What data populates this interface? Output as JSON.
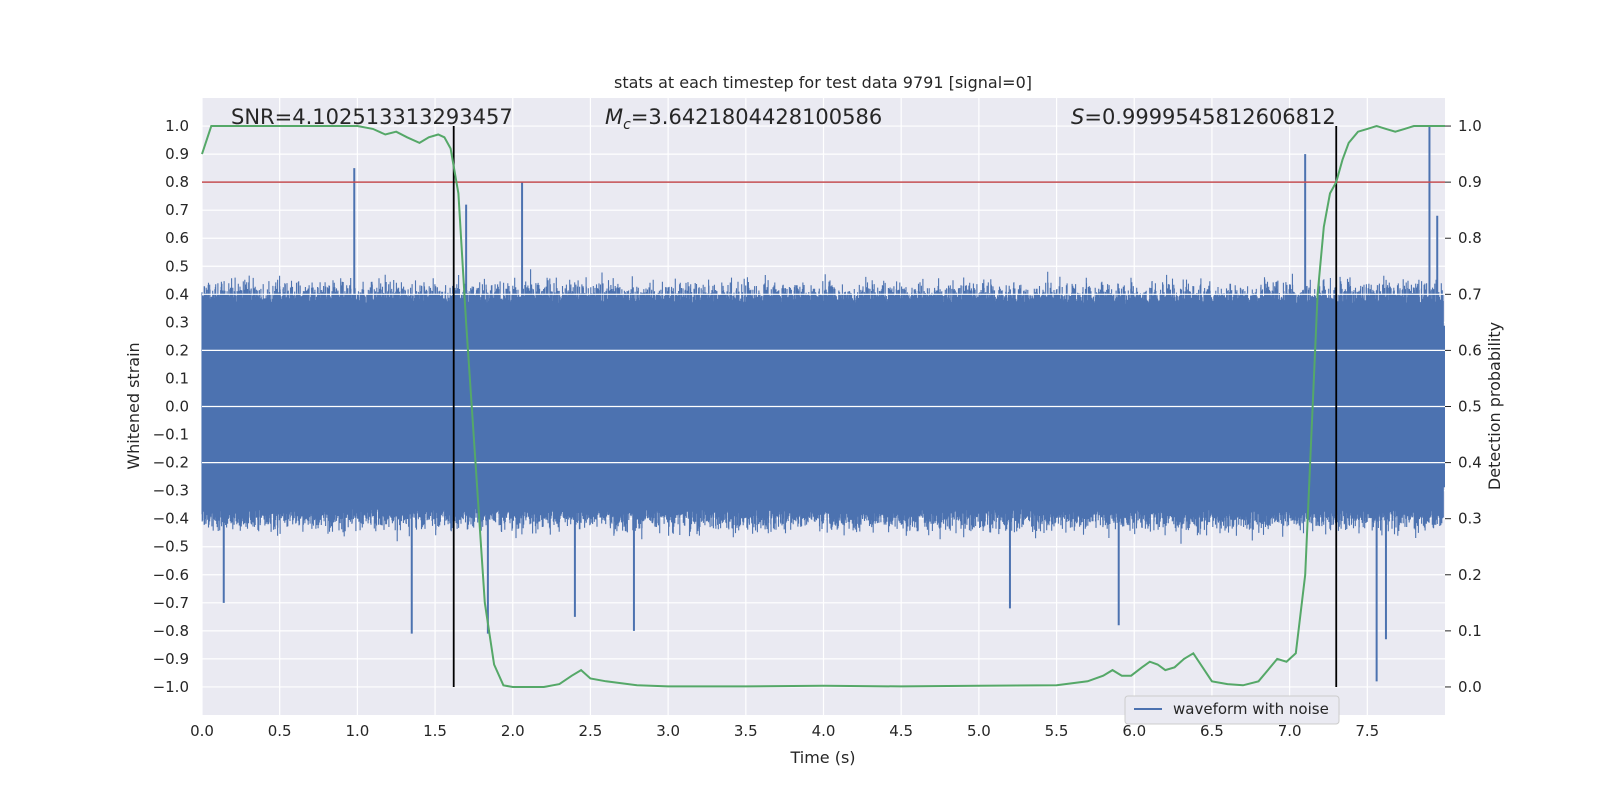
{
  "chart_data": {
    "type": "line",
    "title": "stats at each timestep for test data 9791 [signal=0]",
    "xlabel": "Time (s)",
    "ylabel": "Whitened strain",
    "ylabel_right": "Detection probability",
    "xlim": [
      0.0,
      8.0
    ],
    "ylim": [
      -1.1,
      1.1
    ],
    "ylim_right": [
      -0.05,
      1.05
    ],
    "x_ticks": [
      "0.0",
      "0.5",
      "1.0",
      "1.5",
      "2.0",
      "2.5",
      "3.0",
      "3.5",
      "4.0",
      "4.5",
      "5.0",
      "5.5",
      "6.0",
      "6.5",
      "7.0",
      "7.5"
    ],
    "y_ticks": [
      "1.0",
      "0.9",
      "0.8",
      "0.7",
      "0.6",
      "0.5",
      "0.4",
      "0.3",
      "0.2",
      "0.1",
      "0.0",
      "−0.1",
      "−0.2",
      "−0.3",
      "−0.4",
      "−0.5",
      "−0.6",
      "−0.7",
      "−0.8",
      "−0.9",
      "−1.0"
    ],
    "y_right_ticks": [
      "1.0",
      "0.9",
      "0.8",
      "0.7",
      "0.6",
      "0.5",
      "0.4",
      "0.3",
      "0.2",
      "0.1",
      "0.0"
    ],
    "grid": true,
    "legend_position": "lower-right",
    "annotations": {
      "snr": "SNR=4.102513313293457",
      "mc_symbol": "M",
      "mc_sub": "c",
      "mc_value": "=3.6421804428100586",
      "s_symbol": "S",
      "s_value": "=0.9999545812606812"
    },
    "threshold_y": 0.8,
    "threshold_color": "#c44e52",
    "vertical_lines_x": [
      1.62,
      7.3
    ],
    "series": [
      {
        "name": "waveform with noise",
        "axis": "left",
        "color": "#4c72b0",
        "noise_envelope": 0.4,
        "x_range": [
          0.0,
          7.99
        ],
        "spikes": [
          {
            "x": 0.98,
            "y": 0.85
          },
          {
            "x": 2.06,
            "y": 0.8
          },
          {
            "x": 7.1,
            "y": 0.9
          },
          {
            "x": 7.9,
            "y": 1.0
          },
          {
            "x": 1.35,
            "y": -0.81
          },
          {
            "x": 1.84,
            "y": -0.81
          },
          {
            "x": 2.78,
            "y": -0.8
          },
          {
            "x": 5.9,
            "y": -0.78
          },
          {
            "x": 7.56,
            "y": -0.98
          },
          {
            "x": 7.62,
            "y": -0.83
          },
          {
            "x": 0.14,
            "y": -0.7
          },
          {
            "x": 2.4,
            "y": -0.75
          },
          {
            "x": 5.2,
            "y": -0.72
          },
          {
            "x": 1.7,
            "y": 0.72
          },
          {
            "x": 7.95,
            "y": 0.68
          }
        ]
      },
      {
        "name": "",
        "axis": "right",
        "color": "#55a868",
        "x": [
          0.0,
          0.06,
          0.2,
          0.4,
          0.6,
          0.8,
          1.0,
          1.1,
          1.18,
          1.25,
          1.32,
          1.4,
          1.46,
          1.52,
          1.56,
          1.6,
          1.65,
          1.7,
          1.76,
          1.82,
          1.88,
          1.94,
          2.0,
          2.1,
          2.2,
          2.3,
          2.38,
          2.44,
          2.5,
          2.6,
          2.8,
          3.0,
          3.5,
          4.0,
          4.5,
          5.0,
          5.5,
          5.7,
          5.8,
          5.86,
          5.92,
          5.98,
          6.05,
          6.1,
          6.15,
          6.2,
          6.26,
          6.32,
          6.38,
          6.44,
          6.5,
          6.6,
          6.7,
          6.8,
          6.86,
          6.92,
          6.98,
          7.04,
          7.1,
          7.14,
          7.18,
          7.22,
          7.26,
          7.3,
          7.34,
          7.38,
          7.44,
          7.5,
          7.56,
          7.62,
          7.68,
          7.74,
          7.8,
          7.86,
          7.9,
          7.96,
          8.0
        ],
        "y": [
          0.95,
          1.0,
          1.0,
          1.0,
          1.0,
          1.0,
          1.0,
          0.995,
          0.985,
          0.99,
          0.98,
          0.97,
          0.98,
          0.985,
          0.98,
          0.96,
          0.88,
          0.65,
          0.4,
          0.15,
          0.04,
          0.003,
          0.0,
          0.0,
          0.0,
          0.005,
          0.02,
          0.03,
          0.015,
          0.01,
          0.003,
          0.001,
          0.001,
          0.002,
          0.001,
          0.002,
          0.003,
          0.01,
          0.02,
          0.03,
          0.02,
          0.02,
          0.035,
          0.045,
          0.04,
          0.03,
          0.035,
          0.05,
          0.06,
          0.035,
          0.01,
          0.005,
          0.003,
          0.01,
          0.03,
          0.05,
          0.045,
          0.06,
          0.2,
          0.45,
          0.7,
          0.82,
          0.88,
          0.9,
          0.94,
          0.97,
          0.99,
          0.995,
          1.0,
          0.995,
          0.99,
          0.995,
          1.0,
          1.0,
          1.0,
          1.0,
          1.0
        ]
      }
    ]
  }
}
